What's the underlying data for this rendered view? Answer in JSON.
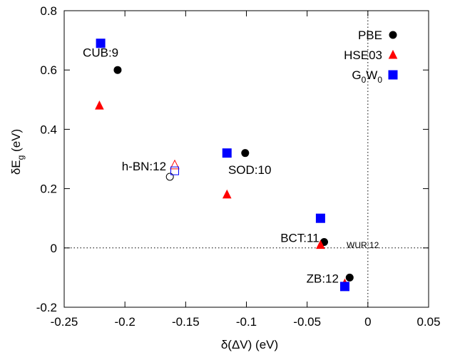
{
  "chart_data": {
    "type": "scatter",
    "xlabel": "δ(ΔV) (eV)",
    "ylabel": {
      "base": "δE",
      "sub": "g",
      "unit": " (eV)"
    },
    "xlim": [
      -0.25,
      0.05
    ],
    "ylim": [
      -0.2,
      0.8
    ],
    "xticks": [
      -0.25,
      -0.2,
      -0.15,
      -0.1,
      -0.05,
      0,
      0.05
    ],
    "xtick_labels": [
      "-0.25",
      "-0.2",
      "-0.15",
      "-0.1",
      "-0.05",
      "0",
      "0.05"
    ],
    "yticks": [
      -0.2,
      0,
      0.2,
      0.4,
      0.6,
      0.8
    ],
    "ytick_labels": [
      "-0.2",
      "0",
      "0.2",
      "0.4",
      "0.6",
      "0.8"
    ],
    "reference_lines": {
      "x": 0,
      "y": 0,
      "style": "dotted"
    },
    "legend_position": "top-right",
    "series": [
      {
        "name": "PBE",
        "marker": "circle",
        "color": "#000000",
        "points": [
          {
            "x": -0.206,
            "y": 0.6,
            "filled": true
          },
          {
            "x": -0.163,
            "y": 0.24,
            "filled": false
          },
          {
            "x": -0.101,
            "y": 0.32,
            "filled": true
          },
          {
            "x": -0.036,
            "y": 0.02,
            "filled": true
          },
          {
            "x": -0.015,
            "y": -0.1,
            "filled": true
          }
        ]
      },
      {
        "name": "HSE03",
        "marker": "triangle",
        "color": "#ff0000",
        "points": [
          {
            "x": -0.221,
            "y": 0.48,
            "filled": true
          },
          {
            "x": -0.159,
            "y": 0.28,
            "filled": false
          },
          {
            "x": -0.116,
            "y": 0.18,
            "filled": true
          },
          {
            "x": -0.039,
            "y": 0.01,
            "filled": true
          },
          {
            "x": -0.019,
            "y": -0.12,
            "filled": true
          }
        ]
      },
      {
        "name": "G0W0",
        "name_parts": {
          "base": "G",
          "sub1": "0",
          "mid": "W",
          "sub2": "0"
        },
        "marker": "square",
        "color": "#0000ff",
        "points": [
          {
            "x": -0.22,
            "y": 0.69,
            "filled": true
          },
          {
            "x": -0.159,
            "y": 0.26,
            "filled": false
          },
          {
            "x": -0.116,
            "y": 0.32,
            "filled": true
          },
          {
            "x": -0.039,
            "y": 0.1,
            "filled": true
          },
          {
            "x": -0.019,
            "y": -0.13,
            "filled": true
          }
        ]
      }
    ],
    "annotations": [
      {
        "text": "CUB:9",
        "x": -0.22,
        "y": 0.645,
        "anchor": "middle",
        "size": "normal"
      },
      {
        "text": "h-BN:12",
        "x": -0.166,
        "y": 0.262,
        "anchor": "end",
        "size": "normal"
      },
      {
        "text": "SOD:10",
        "x": -0.115,
        "y": 0.25,
        "anchor": "start",
        "size": "normal"
      },
      {
        "text": "BCT:11",
        "x": -0.04,
        "y": 0.02,
        "anchor": "end",
        "size": "normal"
      },
      {
        "text": "WUR:12",
        "x": -0.0175,
        "y": -0.001,
        "anchor": "start",
        "size": "small"
      },
      {
        "text": "ZB:12",
        "x": -0.024,
        "y": -0.117,
        "anchor": "end",
        "size": "normal"
      }
    ]
  }
}
